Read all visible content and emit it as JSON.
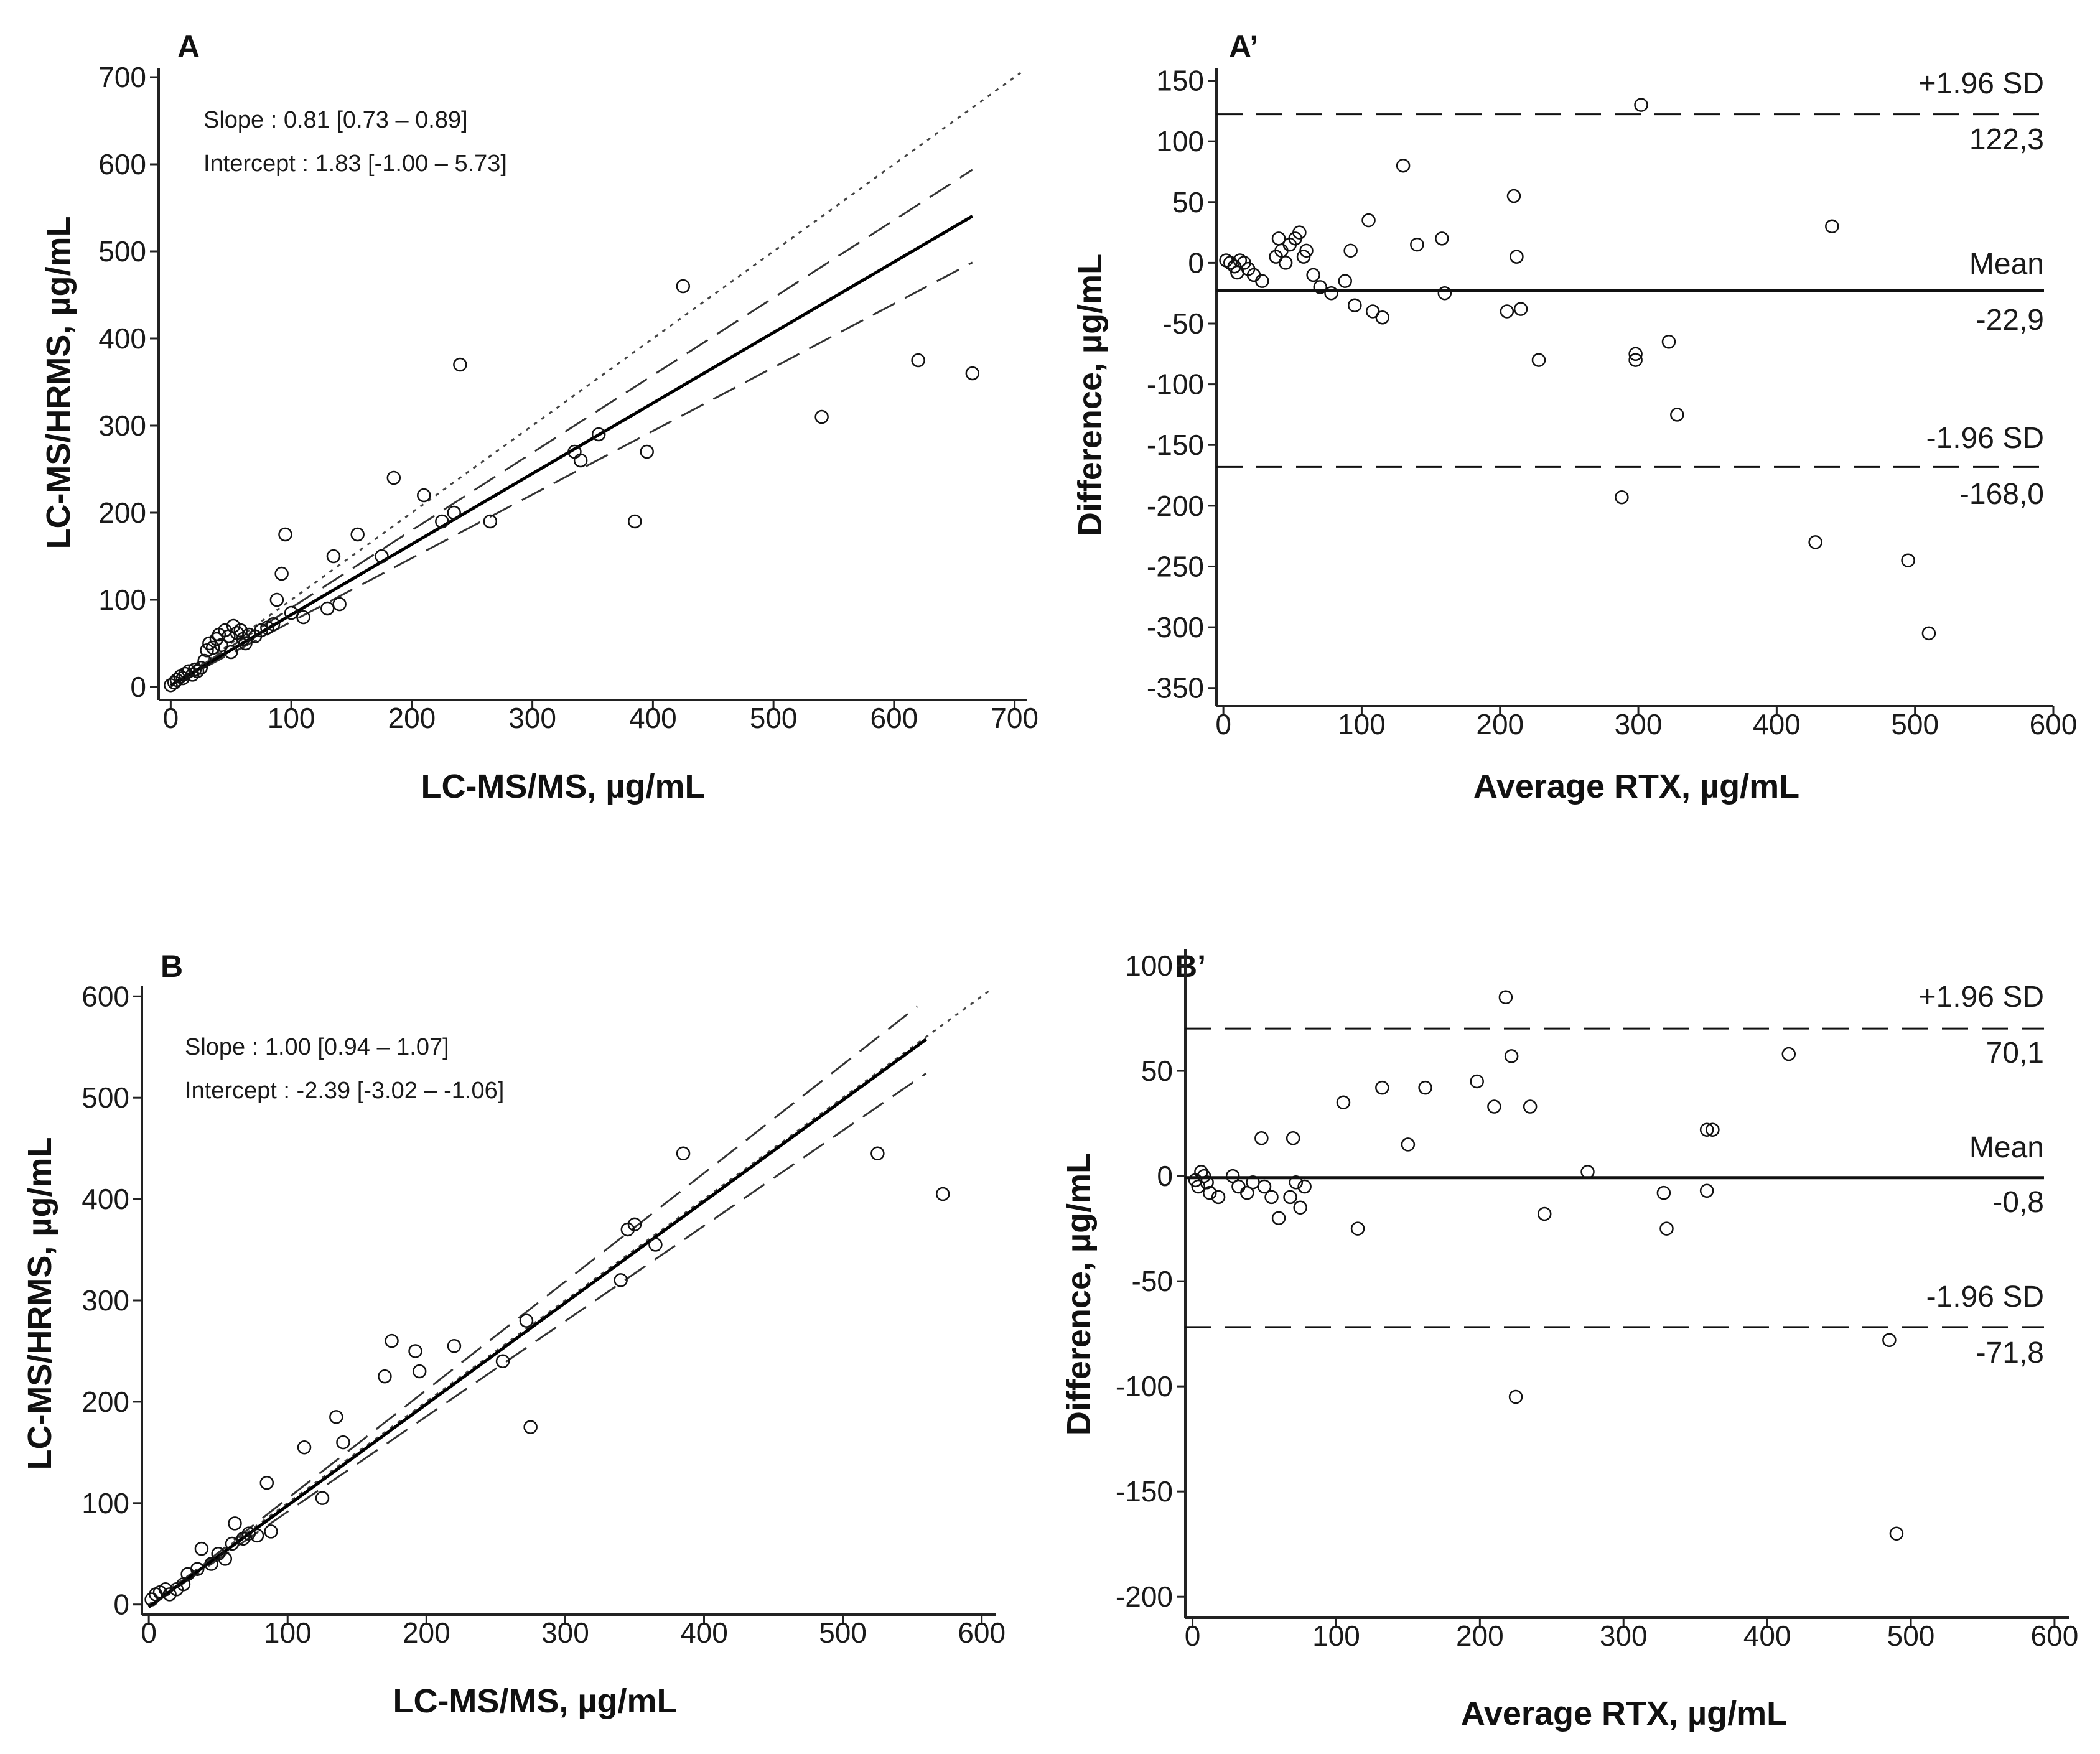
{
  "chart_data": [
    {
      "id": "A",
      "type": "scatter",
      "panel_label": "A",
      "xlabel": "LC-MS/MS, µg/mL",
      "ylabel": "LC-MS/HRMS, µg/mL",
      "xlim": [
        -10,
        710
      ],
      "ylim": [
        -15,
        710
      ],
      "xticks": [
        0,
        100,
        200,
        300,
        400,
        500,
        600,
        700
      ],
      "yticks": [
        0,
        100,
        200,
        300,
        400,
        500,
        600,
        700
      ],
      "annotations": [
        "Slope : 0.81 [0.73 – 0.89]",
        "Intercept : 1.83  [-1.00 – 5.73]"
      ],
      "regression": {
        "slope": 0.81,
        "intercept": 1.83,
        "ci_lower_slope": 0.73,
        "ci_upper_slope": 0.89
      },
      "identity_line": true,
      "points": [
        [
          0,
          2
        ],
        [
          3,
          5
        ],
        [
          5,
          8
        ],
        [
          8,
          12
        ],
        [
          10,
          10
        ],
        [
          12,
          15
        ],
        [
          15,
          18
        ],
        [
          18,
          14
        ],
        [
          20,
          20
        ],
        [
          22,
          18
        ],
        [
          25,
          22
        ],
        [
          28,
          30
        ],
        [
          30,
          42
        ],
        [
          32,
          50
        ],
        [
          35,
          45
        ],
        [
          38,
          55
        ],
        [
          40,
          60
        ],
        [
          42,
          48
        ],
        [
          45,
          65
        ],
        [
          48,
          58
        ],
        [
          50,
          40
        ],
        [
          52,
          70
        ],
        [
          55,
          62
        ],
        [
          58,
          65
        ],
        [
          60,
          55
        ],
        [
          62,
          50
        ],
        [
          65,
          60
        ],
        [
          70,
          58
        ],
        [
          75,
          65
        ],
        [
          80,
          68
        ],
        [
          85,
          72
        ],
        [
          88,
          100
        ],
        [
          92,
          130
        ],
        [
          95,
          175
        ],
        [
          100,
          85
        ],
        [
          110,
          80
        ],
        [
          130,
          90
        ],
        [
          135,
          150
        ],
        [
          140,
          95
        ],
        [
          155,
          175
        ],
        [
          175,
          150
        ],
        [
          185,
          240
        ],
        [
          210,
          220
        ],
        [
          225,
          190
        ],
        [
          235,
          200
        ],
        [
          240,
          370
        ],
        [
          265,
          190
        ],
        [
          335,
          270
        ],
        [
          340,
          260
        ],
        [
          355,
          290
        ],
        [
          385,
          190
        ],
        [
          395,
          270
        ],
        [
          425,
          460
        ],
        [
          540,
          310
        ],
        [
          620,
          375
        ],
        [
          665,
          360
        ]
      ]
    },
    {
      "id": "A-prime",
      "type": "scatter",
      "panel_label": "A’",
      "xlabel": "Average RTX, µg/mL",
      "ylabel": "Difference, µg/mL",
      "xlim": [
        -5,
        600
      ],
      "ylim": [
        -365,
        160
      ],
      "xticks": [
        0,
        100,
        200,
        300,
        400,
        500,
        600
      ],
      "yticks": [
        150,
        100,
        50,
        0,
        -50,
        -100,
        -150,
        -200,
        -250,
        -300,
        -350
      ],
      "mean_line": {
        "label": "Mean",
        "value_label": "-22,9",
        "value": -22.9
      },
      "upper_loa": {
        "label": "+1.96 SD",
        "value_label": "122,3",
        "value": 122.3
      },
      "lower_loa": {
        "label": "-1.96 SD",
        "value_label": "-168,0",
        "value": -168.0
      },
      "points": [
        [
          2,
          2
        ],
        [
          5,
          0
        ],
        [
          8,
          -3
        ],
        [
          10,
          -8
        ],
        [
          12,
          2
        ],
        [
          15,
          0
        ],
        [
          18,
          -5
        ],
        [
          22,
          -10
        ],
        [
          28,
          -15
        ],
        [
          38,
          5
        ],
        [
          40,
          20
        ],
        [
          42,
          10
        ],
        [
          45,
          0
        ],
        [
          48,
          15
        ],
        [
          52,
          20
        ],
        [
          55,
          25
        ],
        [
          58,
          5
        ],
        [
          60,
          10
        ],
        [
          65,
          -10
        ],
        [
          70,
          -20
        ],
        [
          78,
          -25
        ],
        [
          88,
          -15
        ],
        [
          92,
          10
        ],
        [
          95,
          -35
        ],
        [
          105,
          35
        ],
        [
          108,
          -40
        ],
        [
          115,
          -45
        ],
        [
          130,
          80
        ],
        [
          140,
          15
        ],
        [
          158,
          20
        ],
        [
          160,
          -25
        ],
        [
          205,
          -40
        ],
        [
          210,
          55
        ],
        [
          212,
          5
        ],
        [
          215,
          -38
        ],
        [
          228,
          -80
        ],
        [
          298,
          -80
        ],
        [
          298,
          -75
        ],
        [
          302,
          130
        ],
        [
          322,
          -65
        ],
        [
          328,
          -125
        ],
        [
          288,
          -193
        ],
        [
          428,
          -230
        ],
        [
          440,
          30
        ],
        [
          495,
          -245
        ],
        [
          510,
          -305
        ]
      ]
    },
    {
      "id": "B",
      "type": "scatter",
      "panel_label": "B",
      "xlabel": "LC-MS/MS, µg/mL",
      "ylabel": "LC-MS/HRMS, µg/mL",
      "xlim": [
        -5,
        610
      ],
      "ylim": [
        -10,
        610
      ],
      "xticks": [
        0,
        100,
        200,
        300,
        400,
        500,
        600
      ],
      "yticks": [
        0,
        100,
        200,
        300,
        400,
        500,
        600
      ],
      "annotations": [
        "Slope : 1.00 [0.94 – 1.07]",
        "Intercept : -2.39  [-3.02 – -1.06]"
      ],
      "regression": {
        "slope": 1.0,
        "intercept": -2.39,
        "ci_lower_slope": 0.94,
        "ci_upper_slope": 1.07
      },
      "identity_line": true,
      "points": [
        [
          2,
          5
        ],
        [
          5,
          10
        ],
        [
          8,
          12
        ],
        [
          12,
          15
        ],
        [
          15,
          10
        ],
        [
          20,
          15
        ],
        [
          25,
          20
        ],
        [
          28,
          30
        ],
        [
          35,
          35
        ],
        [
          38,
          55
        ],
        [
          45,
          40
        ],
        [
          50,
          50
        ],
        [
          55,
          45
        ],
        [
          60,
          60
        ],
        [
          62,
          80
        ],
        [
          68,
          65
        ],
        [
          72,
          70
        ],
        [
          78,
          68
        ],
        [
          85,
          120
        ],
        [
          88,
          72
        ],
        [
          112,
          155
        ],
        [
          125,
          105
        ],
        [
          135,
          185
        ],
        [
          140,
          160
        ],
        [
          170,
          225
        ],
        [
          175,
          260
        ],
        [
          192,
          250
        ],
        [
          195,
          230
        ],
        [
          220,
          255
        ],
        [
          255,
          240
        ],
        [
          272,
          280
        ],
        [
          275,
          175
        ],
        [
          340,
          320
        ],
        [
          345,
          370
        ],
        [
          350,
          375
        ],
        [
          365,
          355
        ],
        [
          385,
          445
        ],
        [
          525,
          445
        ],
        [
          572,
          405
        ]
      ]
    },
    {
      "id": "B-prime",
      "type": "scatter",
      "panel_label": "B’",
      "xlabel": "Average RTX, µg/mL",
      "ylabel": "Difference, µg/mL",
      "xlim": [
        -5,
        610
      ],
      "ylim": [
        -210,
        108
      ],
      "xticks": [
        0,
        100,
        200,
        300,
        400,
        500,
        600
      ],
      "yticks": [
        100,
        50,
        0,
        -50,
        -100,
        -150,
        -200
      ],
      "mean_line": {
        "label": "Mean",
        "value_label": "-0,8",
        "value": -0.8
      },
      "upper_loa": {
        "label": "+1.96 SD",
        "value_label": "70,1",
        "value": 70.1
      },
      "lower_loa": {
        "label": "-1.96 SD",
        "value_label": "-71,8",
        "value": -71.8
      },
      "points": [
        [
          2,
          -2
        ],
        [
          4,
          -5
        ],
        [
          6,
          2
        ],
        [
          8,
          0
        ],
        [
          10,
          -3
        ],
        [
          12,
          -8
        ],
        [
          18,
          -10
        ],
        [
          28,
          0
        ],
        [
          32,
          -5
        ],
        [
          38,
          -8
        ],
        [
          42,
          -3
        ],
        [
          48,
          18
        ],
        [
          50,
          -5
        ],
        [
          55,
          -10
        ],
        [
          60,
          -20
        ],
        [
          68,
          -10
        ],
        [
          70,
          18
        ],
        [
          72,
          -3
        ],
        [
          75,
          -15
        ],
        [
          78,
          -5
        ],
        [
          105,
          35
        ],
        [
          115,
          -25
        ],
        [
          132,
          42
        ],
        [
          150,
          15
        ],
        [
          162,
          42
        ],
        [
          198,
          45
        ],
        [
          210,
          33
        ],
        [
          218,
          85
        ],
        [
          222,
          57
        ],
        [
          225,
          -105
        ],
        [
          235,
          33
        ],
        [
          245,
          -18
        ],
        [
          275,
          2
        ],
        [
          328,
          -8
        ],
        [
          330,
          -25
        ],
        [
          358,
          22
        ],
        [
          362,
          22
        ],
        [
          358,
          -7
        ],
        [
          415,
          58
        ],
        [
          485,
          -78
        ],
        [
          490,
          -170
        ]
      ]
    }
  ]
}
